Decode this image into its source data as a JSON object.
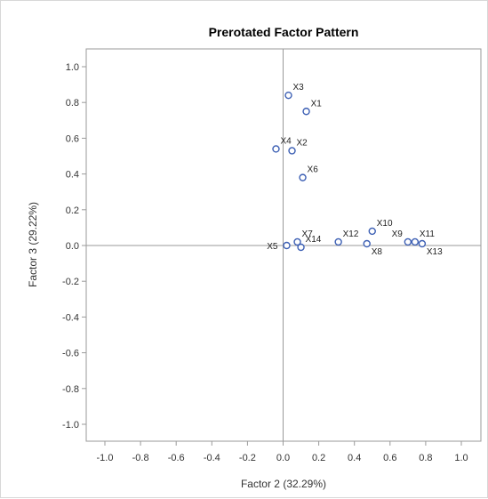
{
  "chart_data": {
    "type": "scatter",
    "title": "Prerotated Factor Pattern",
    "xlabel": "Factor 2 (32.29%)",
    "ylabel": "Factor 3 (29.22%)",
    "xlim": [
      -1.0,
      1.0
    ],
    "ylim": [
      -1.0,
      1.0
    ],
    "xticks": [
      "-1.0",
      "-0.8",
      "-0.6",
      "-0.4",
      "-0.2",
      "0.0",
      "0.2",
      "0.4",
      "0.6",
      "0.8",
      "1.0"
    ],
    "yticks": [
      "1.0",
      "0.8",
      "0.6",
      "0.4",
      "0.2",
      "0.0",
      "-0.2",
      "-0.4",
      "-0.6",
      "-0.8",
      "-1.0"
    ],
    "grid": false,
    "reference_lines": {
      "x": 0,
      "y": 0
    },
    "marker_color": "#3c5fb4",
    "points": [
      {
        "label": "X1",
        "x": 0.13,
        "y": 0.75,
        "label_pos": "upper-right"
      },
      {
        "label": "X2",
        "x": 0.05,
        "y": 0.53,
        "label_pos": "upper-right"
      },
      {
        "label": "X3",
        "x": 0.03,
        "y": 0.84,
        "label_pos": "upper-right"
      },
      {
        "label": "X4",
        "x": -0.04,
        "y": 0.54,
        "label_pos": "upper-right"
      },
      {
        "label": "X5",
        "x": 0.02,
        "y": 0.0,
        "label_pos": "left"
      },
      {
        "label": "X6",
        "x": 0.11,
        "y": 0.38,
        "label_pos": "upper-right"
      },
      {
        "label": "X7",
        "x": 0.08,
        "y": 0.02,
        "label_pos": "upper-right"
      },
      {
        "label": "X8",
        "x": 0.47,
        "y": 0.01,
        "label_pos": "lower-right"
      },
      {
        "label": "X9",
        "x": 0.7,
        "y": 0.02,
        "label_pos": "upper-left"
      },
      {
        "label": "X10",
        "x": 0.5,
        "y": 0.08,
        "label_pos": "upper-right"
      },
      {
        "label": "X11",
        "x": 0.74,
        "y": 0.02,
        "label_pos": "upper-right"
      },
      {
        "label": "X12",
        "x": 0.31,
        "y": 0.02,
        "label_pos": "upper-right"
      },
      {
        "label": "X13",
        "x": 0.78,
        "y": 0.01,
        "label_pos": "lower-right"
      },
      {
        "label": "X14",
        "x": 0.1,
        "y": -0.01,
        "label_pos": "upper-right"
      }
    ]
  }
}
